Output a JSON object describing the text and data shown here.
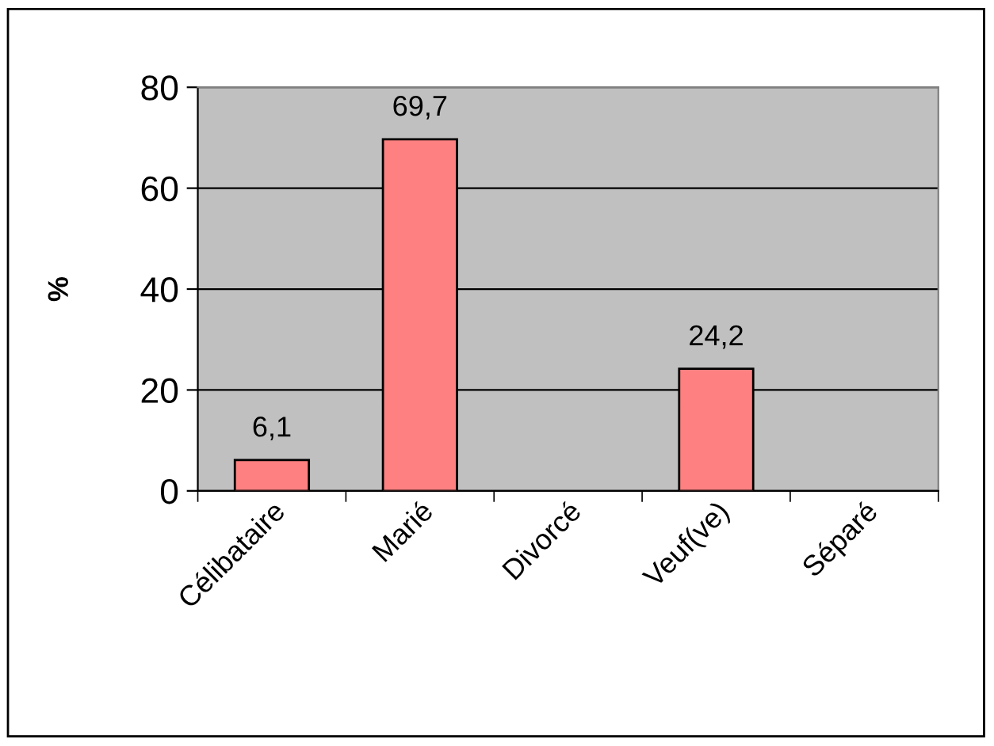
{
  "chart_data": {
    "type": "bar",
    "ylabel": "%",
    "categories": [
      "Célibataire",
      "Marié",
      "Divorcé",
      "Veuf(ve)",
      "Séparé"
    ],
    "values": [
      6.1,
      69.7,
      null,
      24.2,
      null
    ],
    "value_labels": [
      "6,1",
      "69,7",
      null,
      "24,2",
      null
    ],
    "color": "#ff8080",
    "ylim": [
      0,
      80
    ],
    "yticks": [
      0,
      20,
      40,
      60,
      80
    ],
    "grid": "y",
    "legend": false
  }
}
